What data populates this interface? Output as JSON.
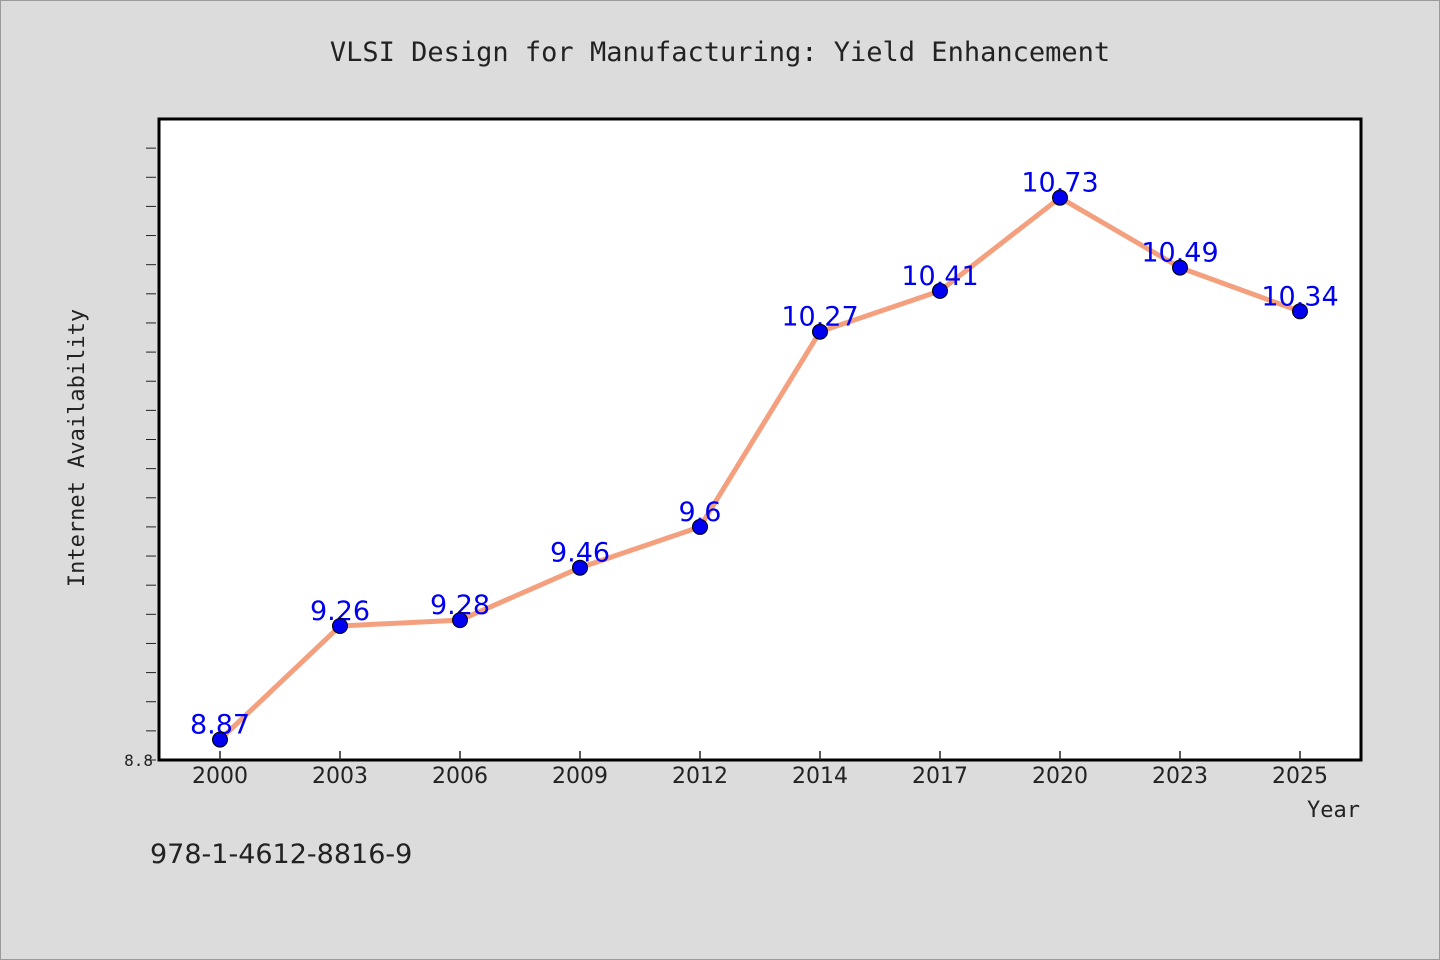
{
  "footer_text": "978-1-4612-8816-9",
  "colors": {
    "line": "#f4a07e",
    "marker": "#0000ee",
    "label": "#0000ee",
    "background": "#dcdcdc",
    "plot": "#ffffff"
  },
  "chart_data": {
    "type": "line",
    "title": "VLSI Design for Manufacturing: Yield Enhancement",
    "xlabel": "Year",
    "ylabel": "Internet Availability",
    "categories": [
      "2000",
      "2003",
      "2006",
      "2009",
      "2012",
      "2014",
      "2017",
      "2020",
      "2023",
      "2025"
    ],
    "series": [
      {
        "values": [
          8.87,
          9.26,
          9.28,
          9.46,
          9.6,
          10.27,
          10.41,
          10.73,
          10.49,
          10.34
        ]
      }
    ],
    "data_labels": [
      "8.87",
      "9.26",
      "9.28",
      "9.46",
      "9.6",
      "10.27",
      "10.41",
      "10.73",
      "10.49",
      "10.34"
    ],
    "ylim": [
      8.8,
      11.0
    ],
    "yticks_labeled": [
      "8.8"
    ],
    "grid": false,
    "legend": "none"
  }
}
